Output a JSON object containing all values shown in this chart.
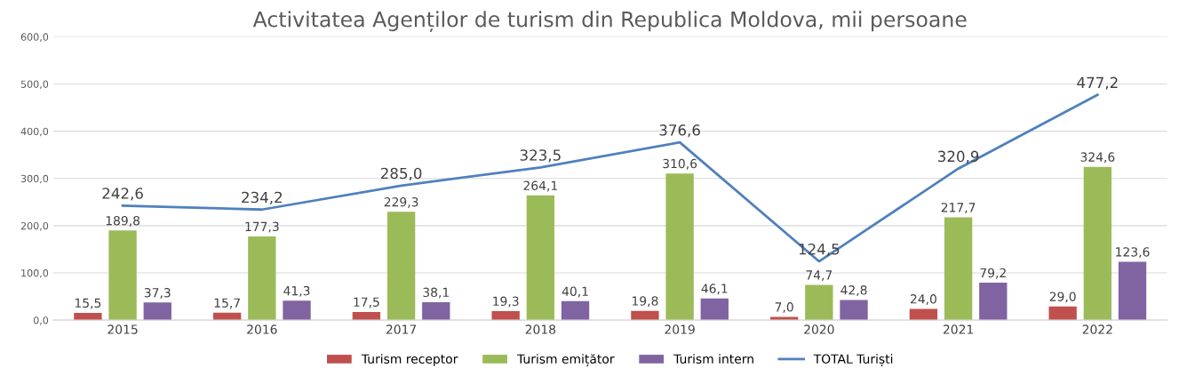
{
  "chart_data": {
    "type": "bar",
    "title": "Activitatea Agenților de turism din Republica Moldova, mii persoane",
    "categories": [
      "2015",
      "2016",
      "2017",
      "2018",
      "2019",
      "2020",
      "2021",
      "2022"
    ],
    "series": [
      {
        "name": "Turism receptor",
        "color": "#c0504d",
        "values": [
          15.5,
          15.7,
          17.5,
          19.3,
          19.8,
          7.0,
          24.0,
          29.0
        ],
        "value_labels": [
          "15,5",
          "15,7",
          "17,5",
          "19,3",
          "19,8",
          "7,0",
          "24,0",
          "29,0"
        ]
      },
      {
        "name": "Turism emițător",
        "color": "#9bbb59",
        "values": [
          189.8,
          177.3,
          229.3,
          264.1,
          310.6,
          74.7,
          217.7,
          324.6
        ],
        "value_labels": [
          "189,8",
          "177,3",
          "229,3",
          "264,1",
          "310,6",
          "74,7",
          "217,7",
          "324,6"
        ]
      },
      {
        "name": "Turism intern",
        "color": "#8064a2",
        "values": [
          37.3,
          41.3,
          38.1,
          40.1,
          46.1,
          42.8,
          79.2,
          123.6
        ],
        "value_labels": [
          "37,3",
          "41,3",
          "38,1",
          "40,1",
          "46,1",
          "42,8",
          "79,2",
          "123,6"
        ]
      },
      {
        "name": "TOTAL Turiști",
        "type": "line",
        "color": "#4f81bd",
        "values": [
          242.6,
          234.2,
          285.0,
          323.5,
          376.6,
          124.5,
          320.9,
          477.2
        ],
        "value_labels": [
          "242,6",
          "234,2",
          "285,0",
          "323,5",
          "376,6",
          "124,5",
          "320,9",
          "477,2"
        ]
      }
    ],
    "ylim": [
      0,
      600
    ],
    "yticks": [
      {
        "value": 0,
        "label": "0,0"
      },
      {
        "value": 100,
        "label": "100,0"
      },
      {
        "value": 200,
        "label": "200,0"
      },
      {
        "value": 300,
        "label": "300,0"
      },
      {
        "value": 400,
        "label": "400,0"
      },
      {
        "value": 500,
        "label": "500,0"
      },
      {
        "value": 600,
        "label": "600,0"
      }
    ],
    "grid": "y",
    "legend": "bottom",
    "marker": "none",
    "line_style": "solid"
  }
}
